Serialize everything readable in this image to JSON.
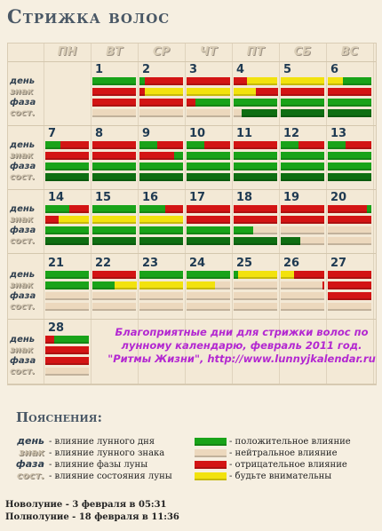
{
  "title": "Стрижка волос",
  "weekdays": [
    "ПН",
    "ВТ",
    "СР",
    "ЧТ",
    "ПТ",
    "СБ",
    "ВС"
  ],
  "row_labels": [
    "день",
    "знак",
    "фаза",
    "сост."
  ],
  "colors": {
    "green": "#19a319",
    "dark_green": "#0f6e12",
    "red": "#d31414",
    "yellow": "#f2e20e",
    "neutral": "#ecd8bd"
  },
  "weeks": [
    {
      "days": [
        null,
        {
          "n": "1",
          "r": [
            [
              [
                "green",
                1
              ]
            ],
            [
              [
                "red",
                1
              ]
            ],
            [
              [
                "red",
                1
              ]
            ],
            [
              [
                "neutral",
                1
              ]
            ]
          ]
        },
        {
          "n": "2",
          "r": [
            [
              [
                "green",
                0.12
              ],
              [
                "red",
                0.88
              ]
            ],
            [
              [
                "red",
                0.12
              ],
              [
                "yellow",
                0.88
              ]
            ],
            [
              [
                "red",
                1
              ]
            ],
            [
              [
                "neutral",
                1
              ]
            ]
          ]
        },
        {
          "n": "3",
          "r": [
            [
              [
                "red",
                1
              ]
            ],
            [
              [
                "yellow",
                1
              ]
            ],
            [
              [
                "red",
                0.2
              ],
              [
                "green",
                0.8
              ]
            ],
            [
              [
                "neutral",
                1
              ]
            ]
          ]
        },
        {
          "n": "4",
          "r": [
            [
              [
                "red",
                0.3
              ],
              [
                "yellow",
                0.7
              ]
            ],
            [
              [
                "yellow",
                0.5
              ],
              [
                "red",
                0.5
              ]
            ],
            [
              [
                "green",
                1
              ]
            ],
            [
              [
                "neutral",
                0.18
              ],
              [
                "dark_green",
                0.82
              ]
            ]
          ]
        },
        {
          "n": "5",
          "r": [
            [
              [
                "yellow",
                1
              ]
            ],
            [
              [
                "red",
                1
              ]
            ],
            [
              [
                "green",
                1
              ]
            ],
            [
              [
                "dark_green",
                1
              ]
            ]
          ]
        },
        {
          "n": "6",
          "r": [
            [
              [
                "yellow",
                0.35
              ],
              [
                "green",
                0.65
              ]
            ],
            [
              [
                "red",
                1
              ]
            ],
            [
              [
                "green",
                1
              ]
            ],
            [
              [
                "dark_green",
                1
              ]
            ]
          ]
        }
      ]
    },
    {
      "days": [
        {
          "n": "7",
          "r": [
            [
              [
                "green",
                0.35
              ],
              [
                "red",
                0.65
              ]
            ],
            [
              [
                "red",
                1
              ]
            ],
            [
              [
                "green",
                1
              ]
            ],
            [
              [
                "dark_green",
                1
              ]
            ]
          ]
        },
        {
          "n": "8",
          "r": [
            [
              [
                "red",
                1
              ]
            ],
            [
              [
                "red",
                1
              ]
            ],
            [
              [
                "green",
                1
              ]
            ],
            [
              [
                "dark_green",
                1
              ]
            ]
          ]
        },
        {
          "n": "9",
          "r": [
            [
              [
                "green",
                0.4
              ],
              [
                "red",
                0.6
              ]
            ],
            [
              [
                "red",
                0.8
              ],
              [
                "green",
                0.2
              ]
            ],
            [
              [
                "green",
                1
              ]
            ],
            [
              [
                "dark_green",
                1
              ]
            ]
          ]
        },
        {
          "n": "10",
          "r": [
            [
              [
                "green",
                0.4
              ],
              [
                "red",
                0.6
              ]
            ],
            [
              [
                "green",
                1
              ]
            ],
            [
              [
                "green",
                1
              ]
            ],
            [
              [
                "dark_green",
                1
              ]
            ]
          ]
        },
        {
          "n": "11",
          "r": [
            [
              [
                "red",
                1
              ]
            ],
            [
              [
                "green",
                1
              ]
            ],
            [
              [
                "green",
                1
              ]
            ],
            [
              [
                "dark_green",
                1
              ]
            ]
          ]
        },
        {
          "n": "12",
          "r": [
            [
              [
                "green",
                0.4
              ],
              [
                "red",
                0.6
              ]
            ],
            [
              [
                "green",
                1
              ]
            ],
            [
              [
                "green",
                1
              ]
            ],
            [
              [
                "dark_green",
                1
              ]
            ]
          ]
        },
        {
          "n": "13",
          "r": [
            [
              [
                "green",
                0.4
              ],
              [
                "red",
                0.6
              ]
            ],
            [
              [
                "green",
                1
              ]
            ],
            [
              [
                "green",
                1
              ]
            ],
            [
              [
                "dark_green",
                1
              ]
            ]
          ]
        }
      ]
    },
    {
      "days": [
        {
          "n": "14",
          "r": [
            [
              [
                "green",
                0.55
              ],
              [
                "red",
                0.45
              ]
            ],
            [
              [
                "red",
                0.3
              ],
              [
                "yellow",
                0.7
              ]
            ],
            [
              [
                "green",
                1
              ]
            ],
            [
              [
                "dark_green",
                1
              ]
            ]
          ]
        },
        {
          "n": "15",
          "r": [
            [
              [
                "green",
                1
              ]
            ],
            [
              [
                "yellow",
                1
              ]
            ],
            [
              [
                "green",
                1
              ]
            ],
            [
              [
                "dark_green",
                1
              ]
            ]
          ]
        },
        {
          "n": "16",
          "r": [
            [
              [
                "green",
                0.6
              ],
              [
                "red",
                0.4
              ]
            ],
            [
              [
                "yellow",
                1
              ]
            ],
            [
              [
                "green",
                1
              ]
            ],
            [
              [
                "dark_green",
                1
              ]
            ]
          ]
        },
        {
          "n": "17",
          "r": [
            [
              [
                "red",
                1
              ]
            ],
            [
              [
                "red",
                1
              ]
            ],
            [
              [
                "green",
                1
              ]
            ],
            [
              [
                "dark_green",
                1
              ]
            ]
          ]
        },
        {
          "n": "18",
          "r": [
            [
              [
                "red",
                1
              ]
            ],
            [
              [
                "red",
                1
              ]
            ],
            [
              [
                "green",
                0.45
              ],
              [
                "neutral",
                0.55
              ]
            ],
            [
              [
                "dark_green",
                1
              ]
            ]
          ]
        },
        {
          "n": "19",
          "r": [
            [
              [
                "red",
                1
              ]
            ],
            [
              [
                "red",
                1
              ]
            ],
            [
              [
                "neutral",
                1
              ]
            ],
            [
              [
                "dark_green",
                0.45
              ],
              [
                "neutral",
                0.55
              ]
            ]
          ]
        },
        {
          "n": "20",
          "r": [
            [
              [
                "red",
                0.9
              ],
              [
                "green",
                0.1
              ]
            ],
            [
              [
                "red",
                1
              ]
            ],
            [
              [
                "neutral",
                1
              ]
            ],
            [
              [
                "neutral",
                1
              ]
            ]
          ]
        }
      ]
    },
    {
      "days": [
        {
          "n": "21",
          "r": [
            [
              [
                "green",
                1
              ]
            ],
            [
              [
                "green",
                1
              ]
            ],
            [
              [
                "neutral",
                1
              ]
            ],
            [
              [
                "neutral",
                1
              ]
            ]
          ]
        },
        {
          "n": "22",
          "r": [
            [
              [
                "red",
                1
              ]
            ],
            [
              [
                "green",
                0.5
              ],
              [
                "yellow",
                0.5
              ]
            ],
            [
              [
                "neutral",
                1
              ]
            ],
            [
              [
                "neutral",
                1
              ]
            ]
          ]
        },
        {
          "n": "23",
          "r": [
            [
              [
                "green",
                1
              ]
            ],
            [
              [
                "yellow",
                1
              ]
            ],
            [
              [
                "neutral",
                1
              ]
            ],
            [
              [
                "neutral",
                1
              ]
            ]
          ]
        },
        {
          "n": "24",
          "r": [
            [
              [
                "green",
                1
              ]
            ],
            [
              [
                "yellow",
                0.65
              ],
              [
                "neutral",
                0.35
              ]
            ],
            [
              [
                "neutral",
                1
              ]
            ],
            [
              [
                "neutral",
                1
              ]
            ]
          ]
        },
        {
          "n": "25",
          "r": [
            [
              [
                "green",
                0.1
              ],
              [
                "yellow",
                0.9
              ]
            ],
            [
              [
                "neutral",
                1
              ]
            ],
            [
              [
                "neutral",
                1
              ]
            ],
            [
              [
                "neutral",
                1
              ]
            ]
          ]
        },
        {
          "n": "26",
          "r": [
            [
              [
                "yellow",
                0.3
              ],
              [
                "red",
                0.7
              ]
            ],
            [
              [
                "neutral",
                0.95
              ],
              [
                "red",
                0.05
              ]
            ],
            [
              [
                "neutral",
                1
              ]
            ],
            [
              [
                "neutral",
                1
              ]
            ]
          ]
        },
        {
          "n": "27",
          "r": [
            [
              [
                "red",
                1
              ]
            ],
            [
              [
                "red",
                1
              ]
            ],
            [
              [
                "red",
                1
              ]
            ],
            [
              [
                "neutral",
                1
              ]
            ]
          ]
        }
      ]
    },
    {
      "days": [
        {
          "n": "28",
          "r": [
            [
              [
                "red",
                0.2
              ],
              [
                "green",
                0.8
              ]
            ],
            [
              [
                "red",
                1
              ]
            ],
            [
              [
                "red",
                1
              ]
            ],
            [
              [
                "neutral",
                1
              ]
            ]
          ]
        }
      ]
    }
  ],
  "note": {
    "line1": "Благоприятные дни для стрижки волос по",
    "line2": "лунному календарю, февраль 2011 год.",
    "line3": "\"Ритмы Жизни\", http://www.lunnyjkalendar.ru"
  },
  "legend": {
    "title": "Пояснения:",
    "left": [
      {
        "label": "день",
        "text": "- влияние лунного дня"
      },
      {
        "label": "знак",
        "text": "- влияние лунного знака"
      },
      {
        "label": "фаза",
        "text": "- влияние фазы луны"
      },
      {
        "label": "сост.",
        "text": "- влияние состояния луны"
      }
    ],
    "right": [
      {
        "color": "green",
        "text": "- положительное влияние"
      },
      {
        "color": "neutral",
        "text": "- нейтральное влияние"
      },
      {
        "color": "red",
        "text": "- отрицательное влияние"
      },
      {
        "color": "yellow",
        "text": "- будьте внимательны"
      }
    ]
  },
  "moon": {
    "new_moon": "Новолуние - 3  февраля в 05:31",
    "full_moon": "Полнолуние - 18 февраля в 11:36"
  }
}
